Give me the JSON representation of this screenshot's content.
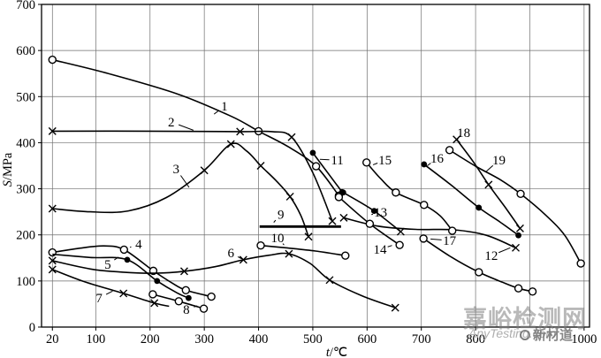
{
  "watermark": {
    "brand_cn": "嘉峪检测网",
    "brand_en": "AnyTesting.com",
    "logo_text": "新材道"
  },
  "chart_data": {
    "type": "line",
    "title": "",
    "xlabel": "t/℃",
    "ylabel": "S/MPa",
    "xlim": [
      0,
      1010
    ],
    "ylim": [
      0,
      700
    ],
    "grid": true,
    "x_gridlines": [
      20,
      100,
      200,
      300,
      400,
      500,
      600,
      700,
      800,
      900,
      1000
    ],
    "x_tick_labels": [
      {
        "value": 20,
        "label": "20"
      },
      {
        "value": 100,
        "label": "100"
      },
      {
        "value": 200,
        "label": "200"
      },
      {
        "value": 300,
        "label": "300"
      },
      {
        "value": 400,
        "label": "400"
      },
      {
        "value": 500,
        "label": "500"
      },
      {
        "value": 600,
        "label": "600"
      },
      {
        "value": 700,
        "label": "700"
      },
      {
        "value": 800,
        "label": "800"
      },
      {
        "value": 1000,
        "label": "1000"
      }
    ],
    "y_ticks": [
      0,
      100,
      200,
      300,
      400,
      500,
      600,
      700
    ],
    "line_color": "#000000",
    "grid_color": "#6e6e6e",
    "series": [
      {
        "id": "1",
        "marker": "circle-open",
        "points": [
          [
            20,
            580
          ],
          [
            120,
            551
          ],
          [
            250,
            506
          ],
          [
            350,
            457
          ],
          [
            400,
            425
          ],
          [
            455,
            391
          ],
          [
            506,
            349
          ],
          [
            548,
            285
          ]
        ],
        "markers": [
          [
            20,
            580
          ],
          [
            400,
            425
          ],
          [
            506,
            349
          ],
          [
            548,
            285
          ]
        ],
        "label": {
          "text": "1",
          "x": 337,
          "y": 479,
          "leader": [
            318,
            462
          ]
        }
      },
      {
        "id": "2",
        "marker": "x",
        "points": [
          [
            20,
            425
          ],
          [
            200,
            425
          ],
          [
            366,
            424
          ],
          [
            425,
            424
          ],
          [
            461,
            412
          ],
          [
            500,
            335
          ],
          [
            536,
            230
          ]
        ],
        "markers": [
          [
            20,
            425
          ],
          [
            366,
            424
          ],
          [
            461,
            412
          ],
          [
            536,
            230
          ]
        ],
        "label": {
          "text": "2",
          "x": 239,
          "y": 445,
          "leader": [
            280,
            427
          ]
        }
      },
      {
        "id": "3",
        "marker": "x",
        "points": [
          [
            20,
            257
          ],
          [
            90,
            250
          ],
          [
            160,
            252
          ],
          [
            230,
            281
          ],
          [
            300,
            340
          ],
          [
            349,
            397
          ],
          [
            378,
            382
          ],
          [
            404,
            350
          ],
          [
            432,
            318
          ],
          [
            458,
            283
          ],
          [
            478,
            242
          ],
          [
            492,
            196
          ]
        ],
        "markers": [
          [
            20,
            257
          ],
          [
            300,
            340
          ],
          [
            349,
            397
          ],
          [
            404,
            350
          ],
          [
            458,
            283
          ],
          [
            492,
            196
          ]
        ],
        "label": {
          "text": "3",
          "x": 248,
          "y": 343,
          "leader": [
            272,
            303
          ]
        }
      },
      {
        "id": "4",
        "marker": "circle-open",
        "points": [
          [
            20,
            162
          ],
          [
            70,
            171
          ],
          [
            115,
            176
          ],
          [
            152,
            168
          ],
          [
            206,
            122
          ],
          [
            240,
            96
          ],
          [
            266,
            80
          ],
          [
            313,
            66
          ]
        ],
        "markers": [
          [
            20,
            162
          ],
          [
            152,
            168
          ],
          [
            206,
            122
          ],
          [
            266,
            80
          ],
          [
            313,
            66
          ]
        ],
        "label": {
          "text": "4",
          "x": 179,
          "y": 180,
          "leader": [
            163,
            173
          ]
        }
      },
      {
        "id": "5",
        "marker": "circle-filled",
        "points": [
          [
            20,
            158
          ],
          [
            90,
            151
          ],
          [
            158,
            146
          ],
          [
            213,
            100
          ],
          [
            250,
            74
          ],
          [
            271,
            63
          ]
        ],
        "markers": [
          [
            158,
            146
          ],
          [
            213,
            100
          ],
          [
            271,
            63
          ]
        ],
        "label": {
          "text": "5",
          "x": 122,
          "y": 136,
          "leader": [
            142,
            152
          ]
        }
      },
      {
        "id": "6",
        "marker": "x",
        "points": [
          [
            20,
            144
          ],
          [
            90,
            126
          ],
          [
            150,
            119
          ],
          [
            210,
            117
          ],
          [
            263,
            121
          ],
          [
            320,
            131
          ],
          [
            372,
            146
          ],
          [
            420,
            156
          ],
          [
            456,
            159
          ],
          [
            495,
            138
          ],
          [
            531,
            102
          ],
          [
            590,
            68
          ],
          [
            652,
            42
          ]
        ],
        "markers": [
          [
            20,
            144
          ],
          [
            263,
            121
          ],
          [
            372,
            146
          ],
          [
            456,
            159
          ],
          [
            531,
            102
          ],
          [
            652,
            42
          ]
        ],
        "label": {
          "text": "6",
          "x": 349,
          "y": 161,
          "leader": [
            369,
            148
          ]
        }
      },
      {
        "id": "7",
        "marker": "x",
        "points": [
          [
            20,
            125
          ],
          [
            80,
            98
          ],
          [
            151,
            73
          ],
          [
            208,
            52
          ],
          [
            235,
            45
          ]
        ],
        "markers": [
          [
            20,
            125
          ],
          [
            151,
            73
          ],
          [
            208,
            52
          ]
        ],
        "label": {
          "text": "7",
          "x": 106,
          "y": 63,
          "leader": [
            131,
            78
          ]
        }
      },
      {
        "id": "8",
        "marker": "circle-open",
        "points": [
          [
            205,
            71
          ],
          [
            253,
            56
          ],
          [
            299,
            40
          ]
        ],
        "markers": [
          [
            205,
            71
          ],
          [
            253,
            56
          ],
          [
            299,
            40
          ]
        ],
        "label": {
          "text": "8",
          "x": 267,
          "y": 38,
          "leader": [
            287,
            46
          ]
        }
      },
      {
        "id": "9",
        "marker": "none",
        "width": 2.8,
        "points": [
          [
            402,
            218
          ],
          [
            552,
            218
          ]
        ],
        "markers": [],
        "label": {
          "text": "9",
          "x": 441,
          "y": 245,
          "leader": [
            428,
            227
          ]
        }
      },
      {
        "id": "10",
        "marker": "circle-open",
        "points": [
          [
            404,
            177
          ],
          [
            450,
            172
          ],
          [
            505,
            165
          ],
          [
            560,
            155
          ]
        ],
        "markers": [
          [
            404,
            177
          ],
          [
            560,
            155
          ]
        ],
        "label": {
          "text": "10",
          "x": 435,
          "y": 194,
          "leader": [
            447,
            178
          ]
        }
      },
      {
        "id": "11",
        "marker": "circle-filled",
        "points": [
          [
            500,
            378
          ],
          [
            554,
            293
          ]
        ],
        "markers": [
          [
            500,
            378
          ],
          [
            554,
            293
          ]
        ],
        "label": {
          "text": "11",
          "x": 545,
          "y": 362,
          "leader": [
            513,
            364
          ]
        }
      },
      {
        "id": "12",
        "marker": "x",
        "points": [
          [
            557,
            237
          ],
          [
            620,
            219
          ],
          [
            690,
            212
          ],
          [
            760,
            211
          ],
          [
            820,
            199
          ],
          [
            874,
            172
          ]
        ],
        "markers": [
          [
            557,
            237
          ],
          [
            874,
            172
          ]
        ],
        "label": {
          "text": "12",
          "x": 829,
          "y": 155,
          "leader": [
            864,
            172
          ]
        }
      },
      {
        "id": "13",
        "marker": "circle-filled",
        "points": [
          [
            556,
            292
          ],
          [
            613,
            252
          ],
          [
            662,
            207
          ]
        ],
        "markers": [
          [
            556,
            292
          ],
          [
            613,
            252
          ],
          [
            662,
            207,
            "x"
          ]
        ],
        "label": {
          "text": "13",
          "x": 625,
          "y": 249,
          "leader": [
            608,
            244
          ]
        }
      },
      {
        "id": "14",
        "marker": "circle-open",
        "points": [
          [
            548,
            282
          ],
          [
            605,
            224
          ],
          [
            660,
            178
          ]
        ],
        "markers": [
          [
            548,
            282
          ],
          [
            605,
            224
          ],
          [
            660,
            178
          ]
        ],
        "label": {
          "text": "14",
          "x": 624,
          "y": 169,
          "leader": [
            646,
            177
          ]
        }
      },
      {
        "id": "15",
        "marker": "circle-open",
        "points": [
          [
            599,
            357
          ],
          [
            625,
            322
          ],
          [
            653,
            292
          ],
          [
            705,
            265
          ],
          [
            735,
            241
          ],
          [
            757,
            209
          ]
        ],
        "markers": [
          [
            599,
            357
          ],
          [
            653,
            292
          ],
          [
            705,
            265
          ],
          [
            757,
            209
          ]
        ],
        "label": {
          "text": "15",
          "x": 633,
          "y": 362,
          "leader": [
            611,
            352
          ]
        }
      },
      {
        "id": "16",
        "marker": "circle-filled",
        "points": [
          [
            705,
            353
          ],
          [
            755,
            308
          ],
          [
            806,
            259
          ],
          [
            845,
            228
          ],
          [
            879,
            199
          ]
        ],
        "markers": [
          [
            705,
            353
          ],
          [
            806,
            259
          ],
          [
            879,
            199
          ]
        ],
        "label": {
          "text": "16",
          "x": 729,
          "y": 366,
          "leader": [
            711,
            350
          ]
        }
      },
      {
        "id": "17",
        "marker": "circle-open",
        "points": [
          [
            704,
            192
          ],
          [
            755,
            152
          ],
          [
            806,
            119
          ],
          [
            850,
            97
          ],
          [
            879,
            84
          ],
          [
            905,
            77
          ]
        ],
        "markers": [
          [
            704,
            192
          ],
          [
            806,
            119
          ],
          [
            879,
            84
          ],
          [
            905,
            77
          ]
        ],
        "label": {
          "text": "17",
          "x": 752,
          "y": 188,
          "leader": [
            717,
            191
          ]
        }
      },
      {
        "id": "18",
        "marker": "x",
        "points": [
          [
            765,
            407
          ],
          [
            795,
            360
          ],
          [
            824,
            309
          ],
          [
            855,
            259
          ],
          [
            882,
            214
          ]
        ],
        "markers": [
          [
            765,
            407
          ],
          [
            824,
            309
          ],
          [
            882,
            214
          ]
        ],
        "label": {
          "text": "18",
          "x": 778,
          "y": 422,
          "leader": [
            764,
            404
          ]
        }
      },
      {
        "id": "19",
        "marker": "circle-open",
        "points": [
          [
            752,
            384
          ],
          [
            800,
            349
          ],
          [
            845,
            320
          ],
          [
            883,
            289
          ],
          [
            930,
            242
          ],
          [
            965,
            198
          ],
          [
            994,
            138
          ]
        ],
        "markers": [
          [
            752,
            384
          ],
          [
            883,
            289
          ],
          [
            994,
            138
          ]
        ],
        "label": {
          "text": "19",
          "x": 843,
          "y": 362,
          "leader": [
            820,
            338
          ]
        }
      }
    ]
  }
}
